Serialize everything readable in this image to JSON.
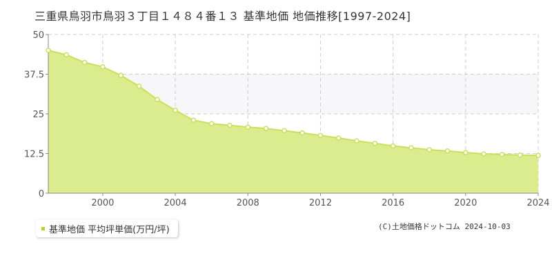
{
  "title": "三重県鳥羽市鳥羽３丁目１４８４番１３ 基準地価 地価推移[1997-2024]",
  "copyright": "(C)土地価格ドットコム 2024-10-03",
  "colors": {
    "line": "#c8e05a",
    "fill": "#dbec8e",
    "point_fill": "#ffffff",
    "band": "#f7f7fa",
    "grid": "#cccccc",
    "axis": "#888888",
    "legend_marker": "#b5d334"
  },
  "chart_data": {
    "type": "area",
    "title": "三重県鳥羽市鳥羽３丁目１４８４番１３ 基準地価 地価推移[1997-2024]",
    "xlabel": "",
    "ylabel": "",
    "xlim": [
      1997,
      2024
    ],
    "ylim": [
      0,
      50
    ],
    "y_ticks": [
      "0",
      "12.5",
      "25",
      "37.5",
      "50"
    ],
    "x_ticks": [
      "2000",
      "2004",
      "2008",
      "2012",
      "2016",
      "2020",
      "2024"
    ],
    "grid": true,
    "legend_position": "bottom-left",
    "series": [
      {
        "name": "基準地価 平均坪単価(万円/坪)",
        "x": [
          1997,
          1998,
          1999,
          2000,
          2001,
          2002,
          2003,
          2004,
          2005,
          2006,
          2007,
          2008,
          2009,
          2010,
          2011,
          2012,
          2013,
          2014,
          2015,
          2016,
          2017,
          2018,
          2019,
          2020,
          2021,
          2022,
          2023,
          2024
        ],
        "y": [
          45.0,
          43.6,
          41.2,
          39.8,
          37.1,
          33.7,
          29.5,
          26.1,
          23.0,
          21.9,
          21.4,
          20.8,
          20.4,
          19.7,
          19.0,
          18.2,
          17.4,
          16.5,
          15.7,
          14.9,
          14.3,
          13.7,
          13.3,
          12.8,
          12.4,
          12.2,
          12.0,
          11.9
        ]
      }
    ]
  }
}
